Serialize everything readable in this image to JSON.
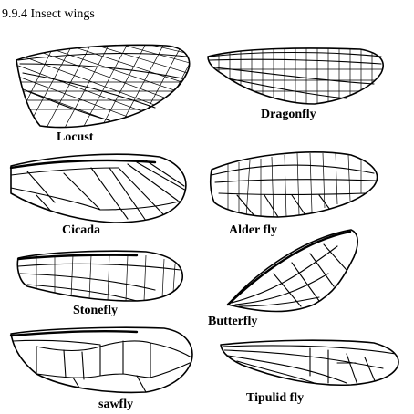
{
  "page": {
    "title": "9.9.4 Insect wings"
  },
  "wings": [
    {
      "id": "locust",
      "label": "Locust"
    },
    {
      "id": "dragonfly",
      "label": "Dragonfly"
    },
    {
      "id": "cicada",
      "label": "Cicada"
    },
    {
      "id": "alderfly",
      "label": "Alder fly"
    },
    {
      "id": "stonefly",
      "label": "Stonefly"
    },
    {
      "id": "butterfly",
      "label": "Butterfly"
    },
    {
      "id": "sawfly",
      "label": "sawfly"
    },
    {
      "id": "tipulid",
      "label": "Tipulid fly"
    }
  ]
}
